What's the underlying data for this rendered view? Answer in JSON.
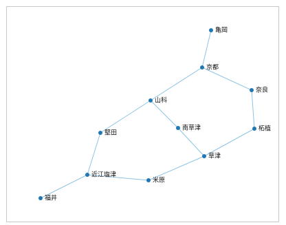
{
  "graph": {
    "nodes": [
      {
        "id": "kameoka",
        "label": "亀岡"
      },
      {
        "id": "kyoto",
        "label": "京都"
      },
      {
        "id": "nara",
        "label": "奈良"
      },
      {
        "id": "yamashina",
        "label": "山科"
      },
      {
        "id": "minamikusatsu",
        "label": "南草津"
      },
      {
        "id": "tsuge",
        "label": "柘植"
      },
      {
        "id": "katata",
        "label": "堅田"
      },
      {
        "id": "kusatsu",
        "label": "草津"
      },
      {
        "id": "omishiotsu",
        "label": "近江塩津"
      },
      {
        "id": "maibara",
        "label": "米原"
      },
      {
        "id": "fukui",
        "label": "福井"
      }
    ],
    "edges": [
      [
        "kameoka",
        "kyoto"
      ],
      [
        "kyoto",
        "nara"
      ],
      [
        "kyoto",
        "yamashina"
      ],
      [
        "nara",
        "tsuge"
      ],
      [
        "yamashina",
        "minamikusatsu"
      ],
      [
        "yamashina",
        "katata"
      ],
      [
        "minamikusatsu",
        "kusatsu"
      ],
      [
        "tsuge",
        "kusatsu"
      ],
      [
        "kusatsu",
        "maibara"
      ],
      [
        "katata",
        "omishiotsu"
      ],
      [
        "omishiotsu",
        "maibara"
      ],
      [
        "omishiotsu",
        "fukui"
      ]
    ]
  }
}
